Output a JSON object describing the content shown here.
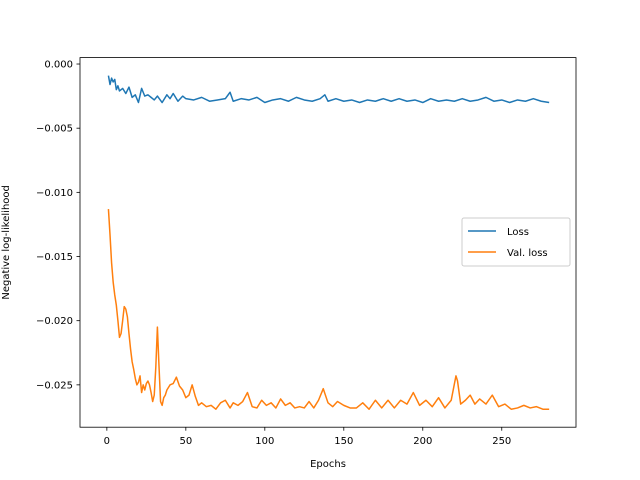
{
  "chart_data": {
    "type": "line",
    "title": "",
    "xlabel": "Epochs",
    "ylabel": "Negative log-likelihood",
    "xlim": [
      -17,
      297
    ],
    "ylim": [
      -0.0283,
      0.0005
    ],
    "xticks": [
      0,
      50,
      100,
      150,
      200,
      250
    ],
    "yticks": [
      0.0,
      -0.005,
      -0.01,
      -0.015,
      -0.02,
      -0.025
    ],
    "ytick_labels": [
      "0.000",
      "−0.005",
      "−0.010",
      "−0.015",
      "−0.020",
      "−0.025"
    ],
    "xtick_labels": [
      "0",
      "50",
      "100",
      "150",
      "200",
      "250"
    ],
    "grid": false,
    "legend": {
      "position": "center-right",
      "entries": [
        "Loss",
        "Val. loss"
      ]
    },
    "series": [
      {
        "name": "Loss",
        "color": "#1f77b4",
        "x": [
          1,
          2,
          3,
          4,
          5,
          6,
          7,
          8,
          10,
          12,
          14,
          16,
          18,
          20,
          22,
          24,
          26,
          28,
          30,
          32,
          35,
          38,
          40,
          42,
          45,
          48,
          50,
          55,
          60,
          65,
          70,
          75,
          78,
          80,
          85,
          90,
          95,
          100,
          105,
          110,
          115,
          120,
          125,
          130,
          135,
          138,
          140,
          145,
          150,
          155,
          160,
          165,
          170,
          175,
          180,
          185,
          190,
          195,
          200,
          205,
          210,
          215,
          220,
          225,
          230,
          235,
          240,
          245,
          250,
          255,
          260,
          265,
          270,
          275,
          280
        ],
        "values": [
          -0.0009,
          -0.0016,
          -0.0011,
          -0.0014,
          -0.0012,
          -0.002,
          -0.0017,
          -0.0021,
          -0.0019,
          -0.0023,
          -0.0018,
          -0.0026,
          -0.0024,
          -0.003,
          -0.0019,
          -0.0025,
          -0.0024,
          -0.0026,
          -0.0028,
          -0.0025,
          -0.003,
          -0.0024,
          -0.0027,
          -0.0023,
          -0.0029,
          -0.0025,
          -0.0027,
          -0.0028,
          -0.0026,
          -0.0029,
          -0.0028,
          -0.0027,
          -0.0022,
          -0.0029,
          -0.0027,
          -0.0028,
          -0.0026,
          -0.003,
          -0.0028,
          -0.0027,
          -0.0029,
          -0.0026,
          -0.0028,
          -0.0029,
          -0.0027,
          -0.0024,
          -0.0029,
          -0.0027,
          -0.0029,
          -0.0028,
          -0.003,
          -0.0028,
          -0.0029,
          -0.0027,
          -0.0029,
          -0.0027,
          -0.0029,
          -0.0028,
          -0.003,
          -0.0027,
          -0.0029,
          -0.0028,
          -0.0029,
          -0.0027,
          -0.0029,
          -0.0028,
          -0.0026,
          -0.0029,
          -0.0028,
          -0.003,
          -0.0028,
          -0.0029,
          -0.0027,
          -0.0029,
          -0.003
        ]
      },
      {
        "name": "Val. loss",
        "color": "#ff7f0e",
        "x": [
          1,
          2,
          3,
          4,
          5,
          6,
          7,
          8,
          9,
          10,
          11,
          12,
          13,
          14,
          15,
          16,
          17,
          18,
          19,
          20,
          21,
          22,
          23,
          24,
          25,
          26,
          27,
          28,
          29,
          30,
          31,
          32,
          33,
          34,
          35,
          36,
          37,
          38,
          40,
          42,
          44,
          46,
          48,
          50,
          52,
          54,
          56,
          58,
          60,
          63,
          66,
          69,
          72,
          75,
          78,
          80,
          83,
          86,
          89,
          92,
          95,
          98,
          101,
          104,
          107,
          110,
          113,
          116,
          119,
          122,
          125,
          128,
          131,
          134,
          137,
          140,
          143,
          146,
          150,
          154,
          158,
          162,
          166,
          170,
          174,
          178,
          182,
          186,
          190,
          194,
          198,
          202,
          206,
          210,
          214,
          218,
          221,
          222,
          224,
          227,
          230,
          233,
          236,
          240,
          244,
          248,
          252,
          256,
          260,
          264,
          268,
          272,
          276,
          280
        ],
        "values": [
          -0.0113,
          -0.0133,
          -0.0155,
          -0.017,
          -0.018,
          -0.0188,
          -0.02,
          -0.0213,
          -0.021,
          -0.02,
          -0.0189,
          -0.0191,
          -0.0197,
          -0.021,
          -0.0222,
          -0.0232,
          -0.0238,
          -0.0245,
          -0.025,
          -0.0248,
          -0.0243,
          -0.0256,
          -0.025,
          -0.0254,
          -0.0249,
          -0.0247,
          -0.025,
          -0.0256,
          -0.0263,
          -0.0258,
          -0.0236,
          -0.0205,
          -0.0235,
          -0.0263,
          -0.0266,
          -0.026,
          -0.0258,
          -0.0254,
          -0.025,
          -0.0249,
          -0.0244,
          -0.0251,
          -0.0254,
          -0.026,
          -0.0258,
          -0.025,
          -0.0259,
          -0.0266,
          -0.0264,
          -0.0267,
          -0.0266,
          -0.0269,
          -0.0264,
          -0.0262,
          -0.0268,
          -0.0264,
          -0.0266,
          -0.0263,
          -0.0256,
          -0.0267,
          -0.0268,
          -0.0262,
          -0.0266,
          -0.0264,
          -0.0268,
          -0.0261,
          -0.0266,
          -0.0264,
          -0.0268,
          -0.0267,
          -0.0268,
          -0.0263,
          -0.0268,
          -0.0262,
          -0.0253,
          -0.0264,
          -0.0267,
          -0.0263,
          -0.0266,
          -0.0268,
          -0.0268,
          -0.0264,
          -0.0269,
          -0.0262,
          -0.0268,
          -0.0262,
          -0.0268,
          -0.0262,
          -0.0265,
          -0.0256,
          -0.0266,
          -0.0262,
          -0.0267,
          -0.026,
          -0.0268,
          -0.0262,
          -0.0243,
          -0.0247,
          -0.0265,
          -0.0262,
          -0.0258,
          -0.0265,
          -0.0261,
          -0.0265,
          -0.0258,
          -0.0267,
          -0.0265,
          -0.0269,
          -0.0268,
          -0.0266,
          -0.0268,
          -0.0267,
          -0.0269,
          -0.0269
        ]
      }
    ]
  }
}
